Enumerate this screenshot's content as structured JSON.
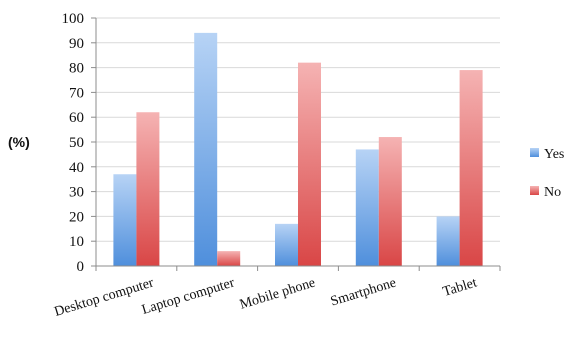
{
  "chart_data": {
    "type": "bar",
    "title": "",
    "xlabel": "",
    "ylabel": "(%)",
    "ylim": [
      0,
      100
    ],
    "yticks": [
      0,
      10,
      20,
      30,
      40,
      50,
      60,
      70,
      80,
      90,
      100
    ],
    "grid": true,
    "legend_position": "right",
    "categories": [
      "Desktop computer",
      "Laptop computer",
      "Mobile phone",
      "Smartphone",
      "Tablet"
    ],
    "series": [
      {
        "name": "Yes",
        "values": [
          37,
          94,
          17,
          47,
          20
        ],
        "color": "#5b9bd5"
      },
      {
        "name": "No",
        "values": [
          62,
          6,
          82,
          52,
          79
        ],
        "color": "#e5595c"
      }
    ]
  }
}
